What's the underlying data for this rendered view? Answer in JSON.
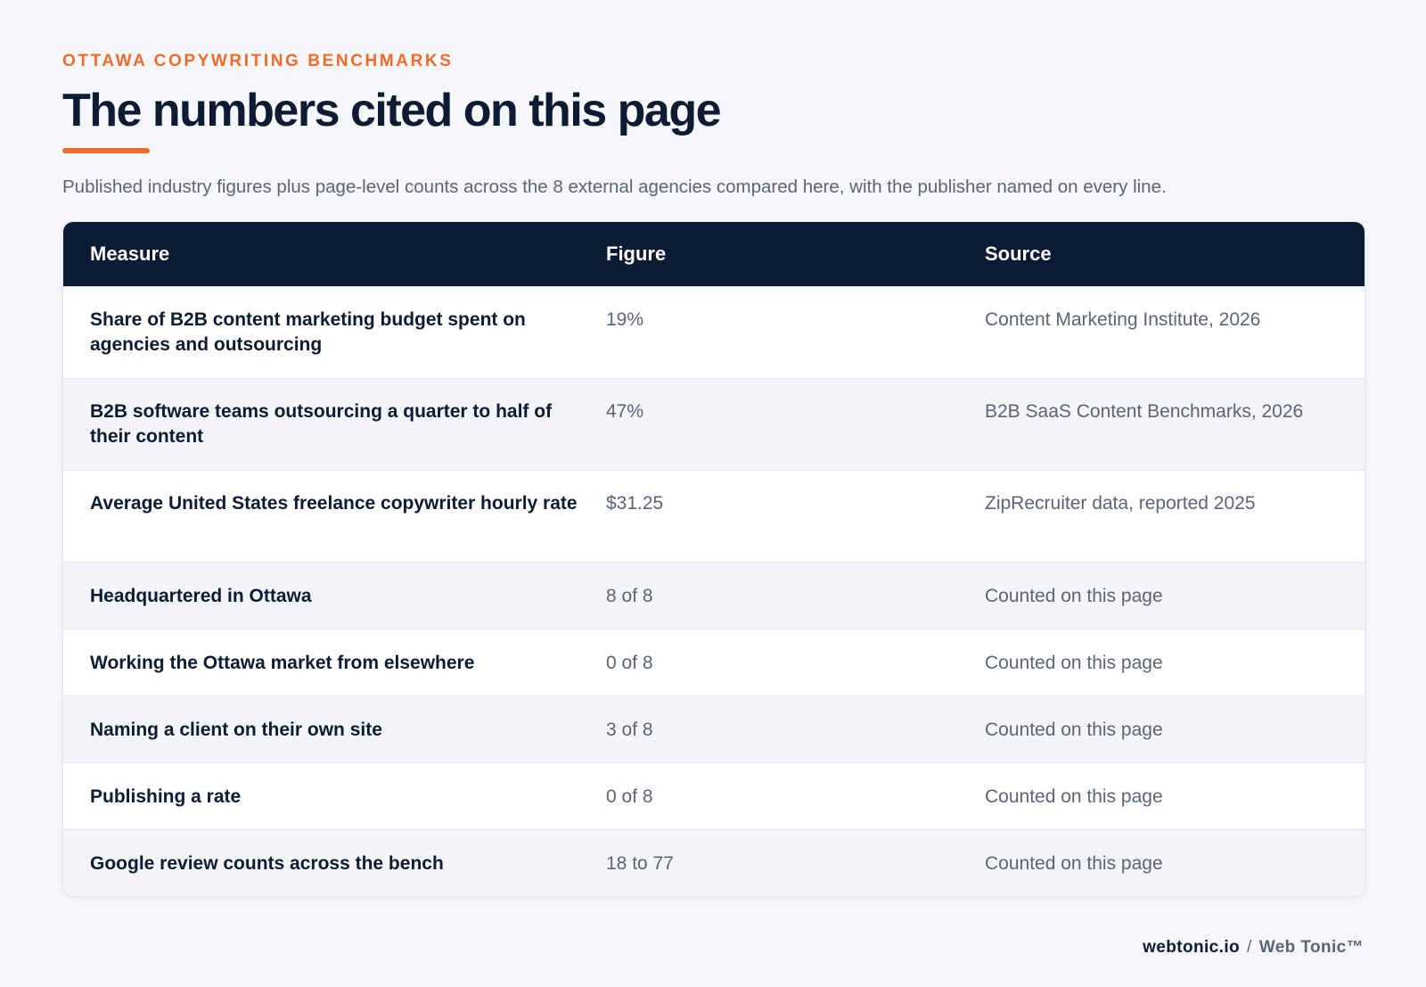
{
  "header": {
    "eyebrow": "OTTAWA COPYWRITING BENCHMARKS",
    "title": "The numbers cited on this page",
    "subtitle": "Published industry figures plus page-level counts across the 8 external agencies compared here, with the publisher named on every line."
  },
  "table": {
    "columns": [
      "Measure",
      "Figure",
      "Source"
    ],
    "rows": [
      {
        "measure": "Share of B2B content marketing budget spent on agencies and outsourcing",
        "figure": "19%",
        "source": "Content Marketing Institute, 2026"
      },
      {
        "measure": "B2B software teams outsourcing a quarter to half of their content",
        "figure": "47%",
        "source": "B2B SaaS Content Benchmarks, 2026"
      },
      {
        "measure": "Average United States freelance copywriter hourly rate",
        "figure": "$31.25",
        "source": "ZipRecruiter data, reported 2025"
      },
      {
        "measure": "Headquartered in Ottawa",
        "figure": "8 of 8",
        "source": "Counted on this page"
      },
      {
        "measure": "Working the Ottawa market from elsewhere",
        "figure": "0 of 8",
        "source": "Counted on this page"
      },
      {
        "measure": "Naming a client on their own site",
        "figure": "3 of 8",
        "source": "Counted on this page"
      },
      {
        "measure": "Publishing a rate",
        "figure": "0 of 8",
        "source": "Counted on this page"
      },
      {
        "measure": "Google review counts across the bench",
        "figure": "18 to 77",
        "source": "Counted on this page"
      }
    ]
  },
  "footer": {
    "domain": "webtonic.io",
    "separator": "/",
    "brand": "Web Tonic™"
  },
  "colors": {
    "accent": "#f26b2a",
    "header_bg": "#0b1a35",
    "page_bg": "#f5f7fa"
  }
}
